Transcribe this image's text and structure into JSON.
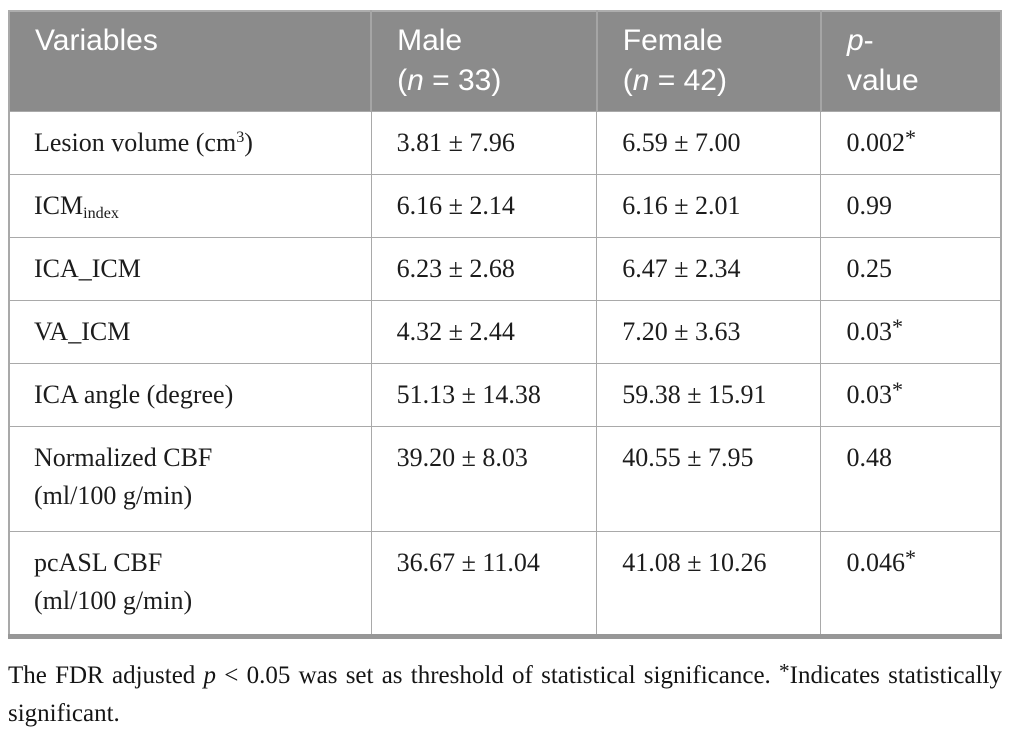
{
  "table": {
    "header": {
      "variables": "Variables",
      "male": {
        "label": "Male",
        "paren_open": "(",
        "n_symbol": "n",
        "n_rest": " = 33",
        "paren_close": ")"
      },
      "female": {
        "label": "Female",
        "paren_open": "(",
        "n_symbol": "n",
        "n_rest": " = 42",
        "paren_close": ")"
      },
      "pvalue": {
        "p_symbol": "p",
        "hyphen": "-",
        "line2": "value"
      }
    },
    "significance_marker": "*",
    "rows": [
      {
        "variable": [
          {
            "text": "Lesion volume (cm"
          },
          {
            "sup": "3"
          },
          {
            "text": ")"
          }
        ],
        "male": "3.81 ± 7.96",
        "female": "6.59 ± 7.00",
        "p": "0.002",
        "star": true,
        "tall": false
      },
      {
        "variable": [
          {
            "text": "ICM"
          },
          {
            "sub": "index"
          }
        ],
        "male": "6.16 ± 2.14",
        "female": "6.16 ± 2.01",
        "p": "0.99",
        "star": false,
        "tall": false
      },
      {
        "variable": [
          {
            "text": "ICA_ICM"
          }
        ],
        "male": "6.23 ± 2.68",
        "female": "6.47 ± 2.34",
        "p": "0.25",
        "star": false,
        "tall": false
      },
      {
        "variable": [
          {
            "text": "VA_ICM"
          }
        ],
        "male": "4.32 ± 2.44",
        "female": "7.20 ± 3.63",
        "p": "0.03",
        "star": true,
        "tall": false
      },
      {
        "variable": [
          {
            "text": "ICA angle (degree)"
          }
        ],
        "male": "51.13 ± 14.38",
        "female": "59.38 ± 15.91",
        "p": "0.03",
        "star": true,
        "tall": false
      },
      {
        "variable": [
          {
            "text": "Normalized CBF"
          },
          {
            "br": true
          },
          {
            "text": "(ml/100 g/min)"
          }
        ],
        "male": "39.20 ± 8.03",
        "female": "40.55 ± 7.95",
        "p": "0.48",
        "star": false,
        "tall": true
      },
      {
        "variable": [
          {
            "text": "pcASL CBF"
          },
          {
            "br": true
          },
          {
            "text": "(ml/100 g/min)"
          }
        ],
        "male": "36.67 ± 11.04",
        "female": "41.08 ± 10.26",
        "p": "0.046",
        "star": true,
        "tall": true
      }
    ]
  },
  "footnote": {
    "before_p": "The FDR adjusted ",
    "p_symbol": "p",
    "mid": " < 0.05 was set as threshold of statistical significance. ",
    "marker": "*",
    "after_marker": "Indicates statistically significant."
  }
}
